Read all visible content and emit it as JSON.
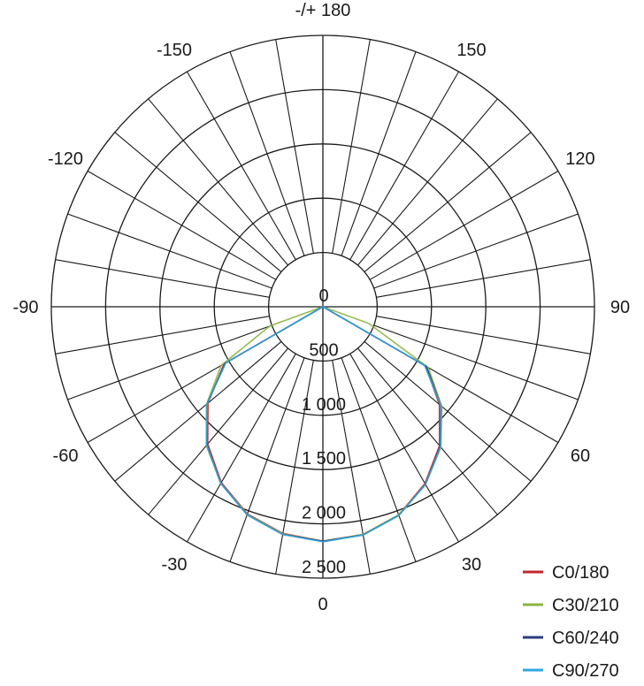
{
  "chart_data": {
    "type": "polar-line",
    "angle_unit": "degrees",
    "angle_labels": [
      "-/+ 180",
      "150",
      "120",
      "90",
      "60",
      "30",
      "0",
      "-30",
      "-60",
      "-90",
      "-120",
      "-150"
    ],
    "angle_label_values": [
      180,
      150,
      120,
      90,
      60,
      30,
      0,
      -30,
      -60,
      -90,
      -120,
      -150
    ],
    "angle_grid_step": 10,
    "radial_range": [
      0,
      2500
    ],
    "radial_ticks": [
      0,
      500,
      1000,
      1500,
      2000,
      2500
    ],
    "radial_tick_labels": [
      "0",
      "500",
      "1 000",
      "1 500",
      "2 000",
      "2 500"
    ],
    "grid": true,
    "legend_placement": "bottom-right",
    "gamma": [
      0,
      10,
      20,
      30,
      40,
      50,
      60,
      70,
      80,
      90
    ],
    "series": [
      {
        "name": "C0/180",
        "color": "#c0272d",
        "right": [
          2160,
          2130,
          2040,
          1880,
          1670,
          1400,
          1090,
          0,
          0,
          0
        ],
        "left": [
          2160,
          2120,
          2030,
          1870,
          1650,
          1380,
          1050,
          0,
          0,
          0
        ]
      },
      {
        "name": "C30/210",
        "color": "#8cb33f",
        "right": [
          2160,
          2130,
          2040,
          1890,
          1690,
          1430,
          1120,
          450,
          0,
          0
        ],
        "left": [
          2160,
          2125,
          2035,
          1880,
          1670,
          1400,
          1080,
          520,
          0,
          0
        ]
      },
      {
        "name": "C60/240",
        "color": "#2b3b7e",
        "right": [
          2160,
          2135,
          2045,
          1890,
          1680,
          1420,
          1100,
          0,
          0,
          0
        ],
        "left": [
          2160,
          2130,
          2040,
          1880,
          1660,
          1390,
          1040,
          0,
          0,
          0
        ]
      },
      {
        "name": "C90/270",
        "color": "#2fa8df",
        "right": [
          2165,
          2135,
          2045,
          1890,
          1685,
          1420,
          1080,
          0,
          0,
          0
        ],
        "left": [
          2165,
          2130,
          2040,
          1880,
          1665,
          1390,
          1030,
          0,
          0,
          0
        ]
      }
    ]
  }
}
